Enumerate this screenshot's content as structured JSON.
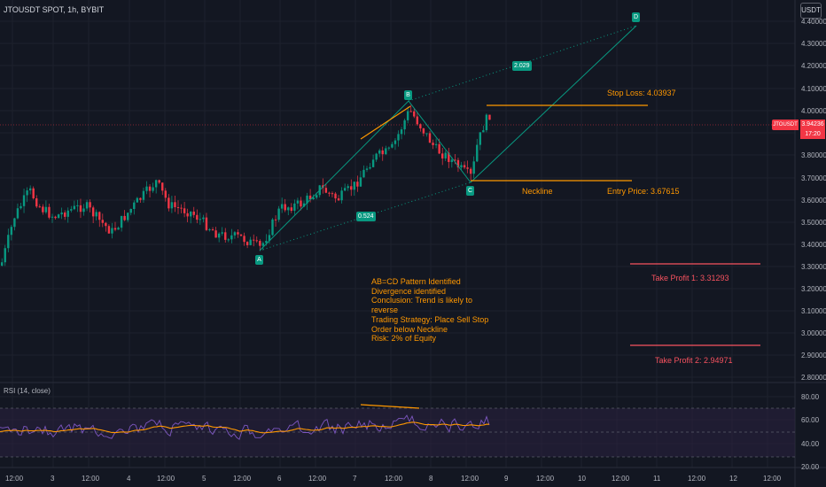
{
  "header": {
    "symbol_title": "JTOUSDT SPOT, 1h, BYBIT",
    "currency_button": "USDT"
  },
  "price_axis": {
    "ticks": [
      "4.40000",
      "4.30000",
      "4.20000",
      "4.10000",
      "4.00000",
      "3.90000",
      "3.80000",
      "3.70000",
      "3.60000",
      "3.50000",
      "3.40000",
      "3.30000",
      "3.20000",
      "3.10000",
      "3.00000",
      "2.90000",
      "2.80000"
    ]
  },
  "last_price": {
    "symbol": "JTOUSDT",
    "value": "3.94236",
    "countdown": "17:20"
  },
  "rsi_axis": {
    "ticks": [
      "80.00",
      "60.00",
      "40.00",
      "20.00"
    ]
  },
  "rsi_panel": {
    "title": "RSI (14, close)"
  },
  "time_axis": {
    "ticks": [
      "12:00",
      "3",
      "12:00",
      "4",
      "12:00",
      "5",
      "12:00",
      "6",
      "12:00",
      "7",
      "12:00",
      "8",
      "12:00",
      "9",
      "12:00",
      "10",
      "12:00",
      "11",
      "12:00",
      "12",
      "12:00"
    ]
  },
  "pattern": {
    "point_a": "A",
    "point_b": "B",
    "point_c": "C",
    "point_d": "D",
    "ratio_bc": "0.524",
    "ratio_cd": "2.029"
  },
  "levels": {
    "stop_loss": "Stop Loss: 4.03937",
    "neckline": "Neckline",
    "entry_price": "Entry Price: 3.67615",
    "take_profit_1": "Take Profit 1: 3.31293",
    "take_profit_2": "Take Profit 2: 2.94971"
  },
  "notes": [
    "AB=CD Pattern Identified",
    "Divergence identified",
    "Conclusion: Trend is likely to",
    "reverse",
    "Trading Strategy: Place Sell Stop",
    "Order below Neckline",
    "Risk: 2% of Equity"
  ],
  "colors": {
    "background": "#131722",
    "bull_candle": "#089981",
    "bear_candle": "#f23645",
    "orange": "#ff9800",
    "pink": "#f7525f",
    "rsi_line": "#7e57c2",
    "rsi_ma": "#ff9800",
    "pattern_line": "#089981"
  }
}
